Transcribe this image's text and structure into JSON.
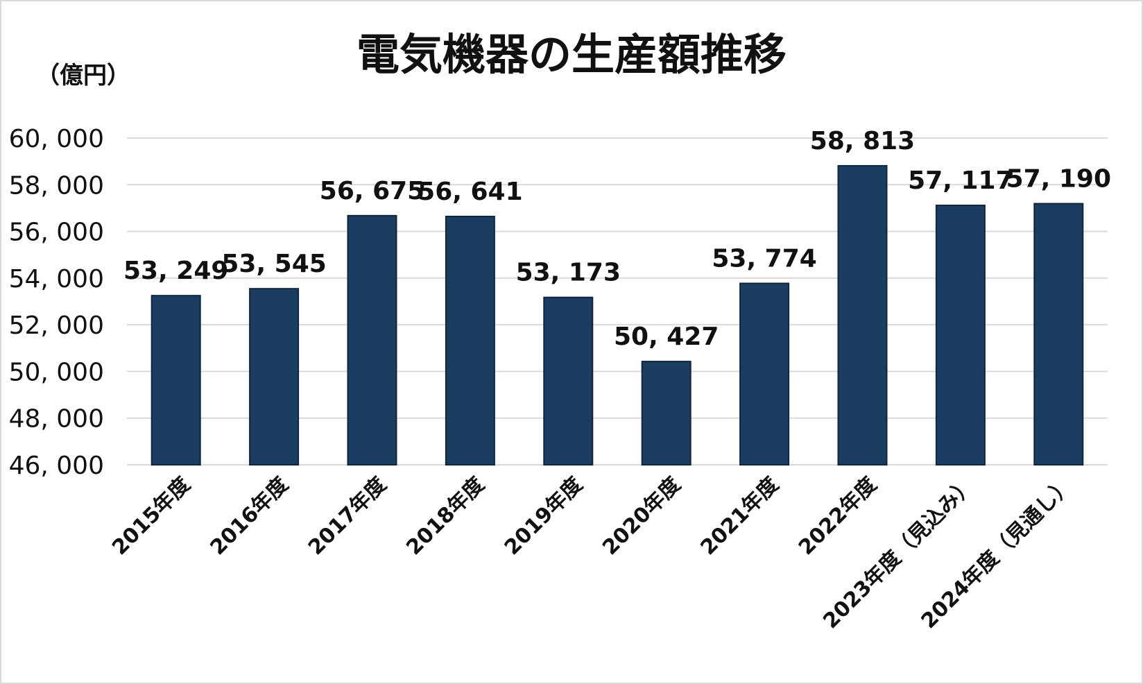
{
  "chart_data": {
    "type": "bar",
    "title": "電気機器の生産額推移",
    "ylabel": "（億円）",
    "xlabel": "",
    "categories": [
      "2015年度",
      "2016年度",
      "2017年度",
      "2018年度",
      "2019年度",
      "2020年度",
      "2021年度",
      "2022年度",
      "2023年度（見込み）",
      "2024年度（見通し）"
    ],
    "values": [
      53249,
      53545,
      56675,
      56641,
      53173,
      50427,
      53774,
      58813,
      57117,
      57190
    ],
    "value_labels": [
      "53, 249",
      "53, 545",
      "56, 675",
      "56, 641",
      "53, 173",
      "50, 427",
      "53, 774",
      "58, 813",
      "57, 117",
      "57, 190"
    ],
    "yticks": [
      46000,
      48000,
      50000,
      52000,
      54000,
      56000,
      58000,
      60000
    ],
    "ytick_labels": [
      "46, 000",
      "48, 000",
      "50, 000",
      "52, 000",
      "54, 000",
      "56, 000",
      "58, 000",
      "60, 000"
    ],
    "ylim": [
      46000,
      60000
    ],
    "grid": true,
    "legend": "none",
    "bar_color": "#1b3d61"
  }
}
